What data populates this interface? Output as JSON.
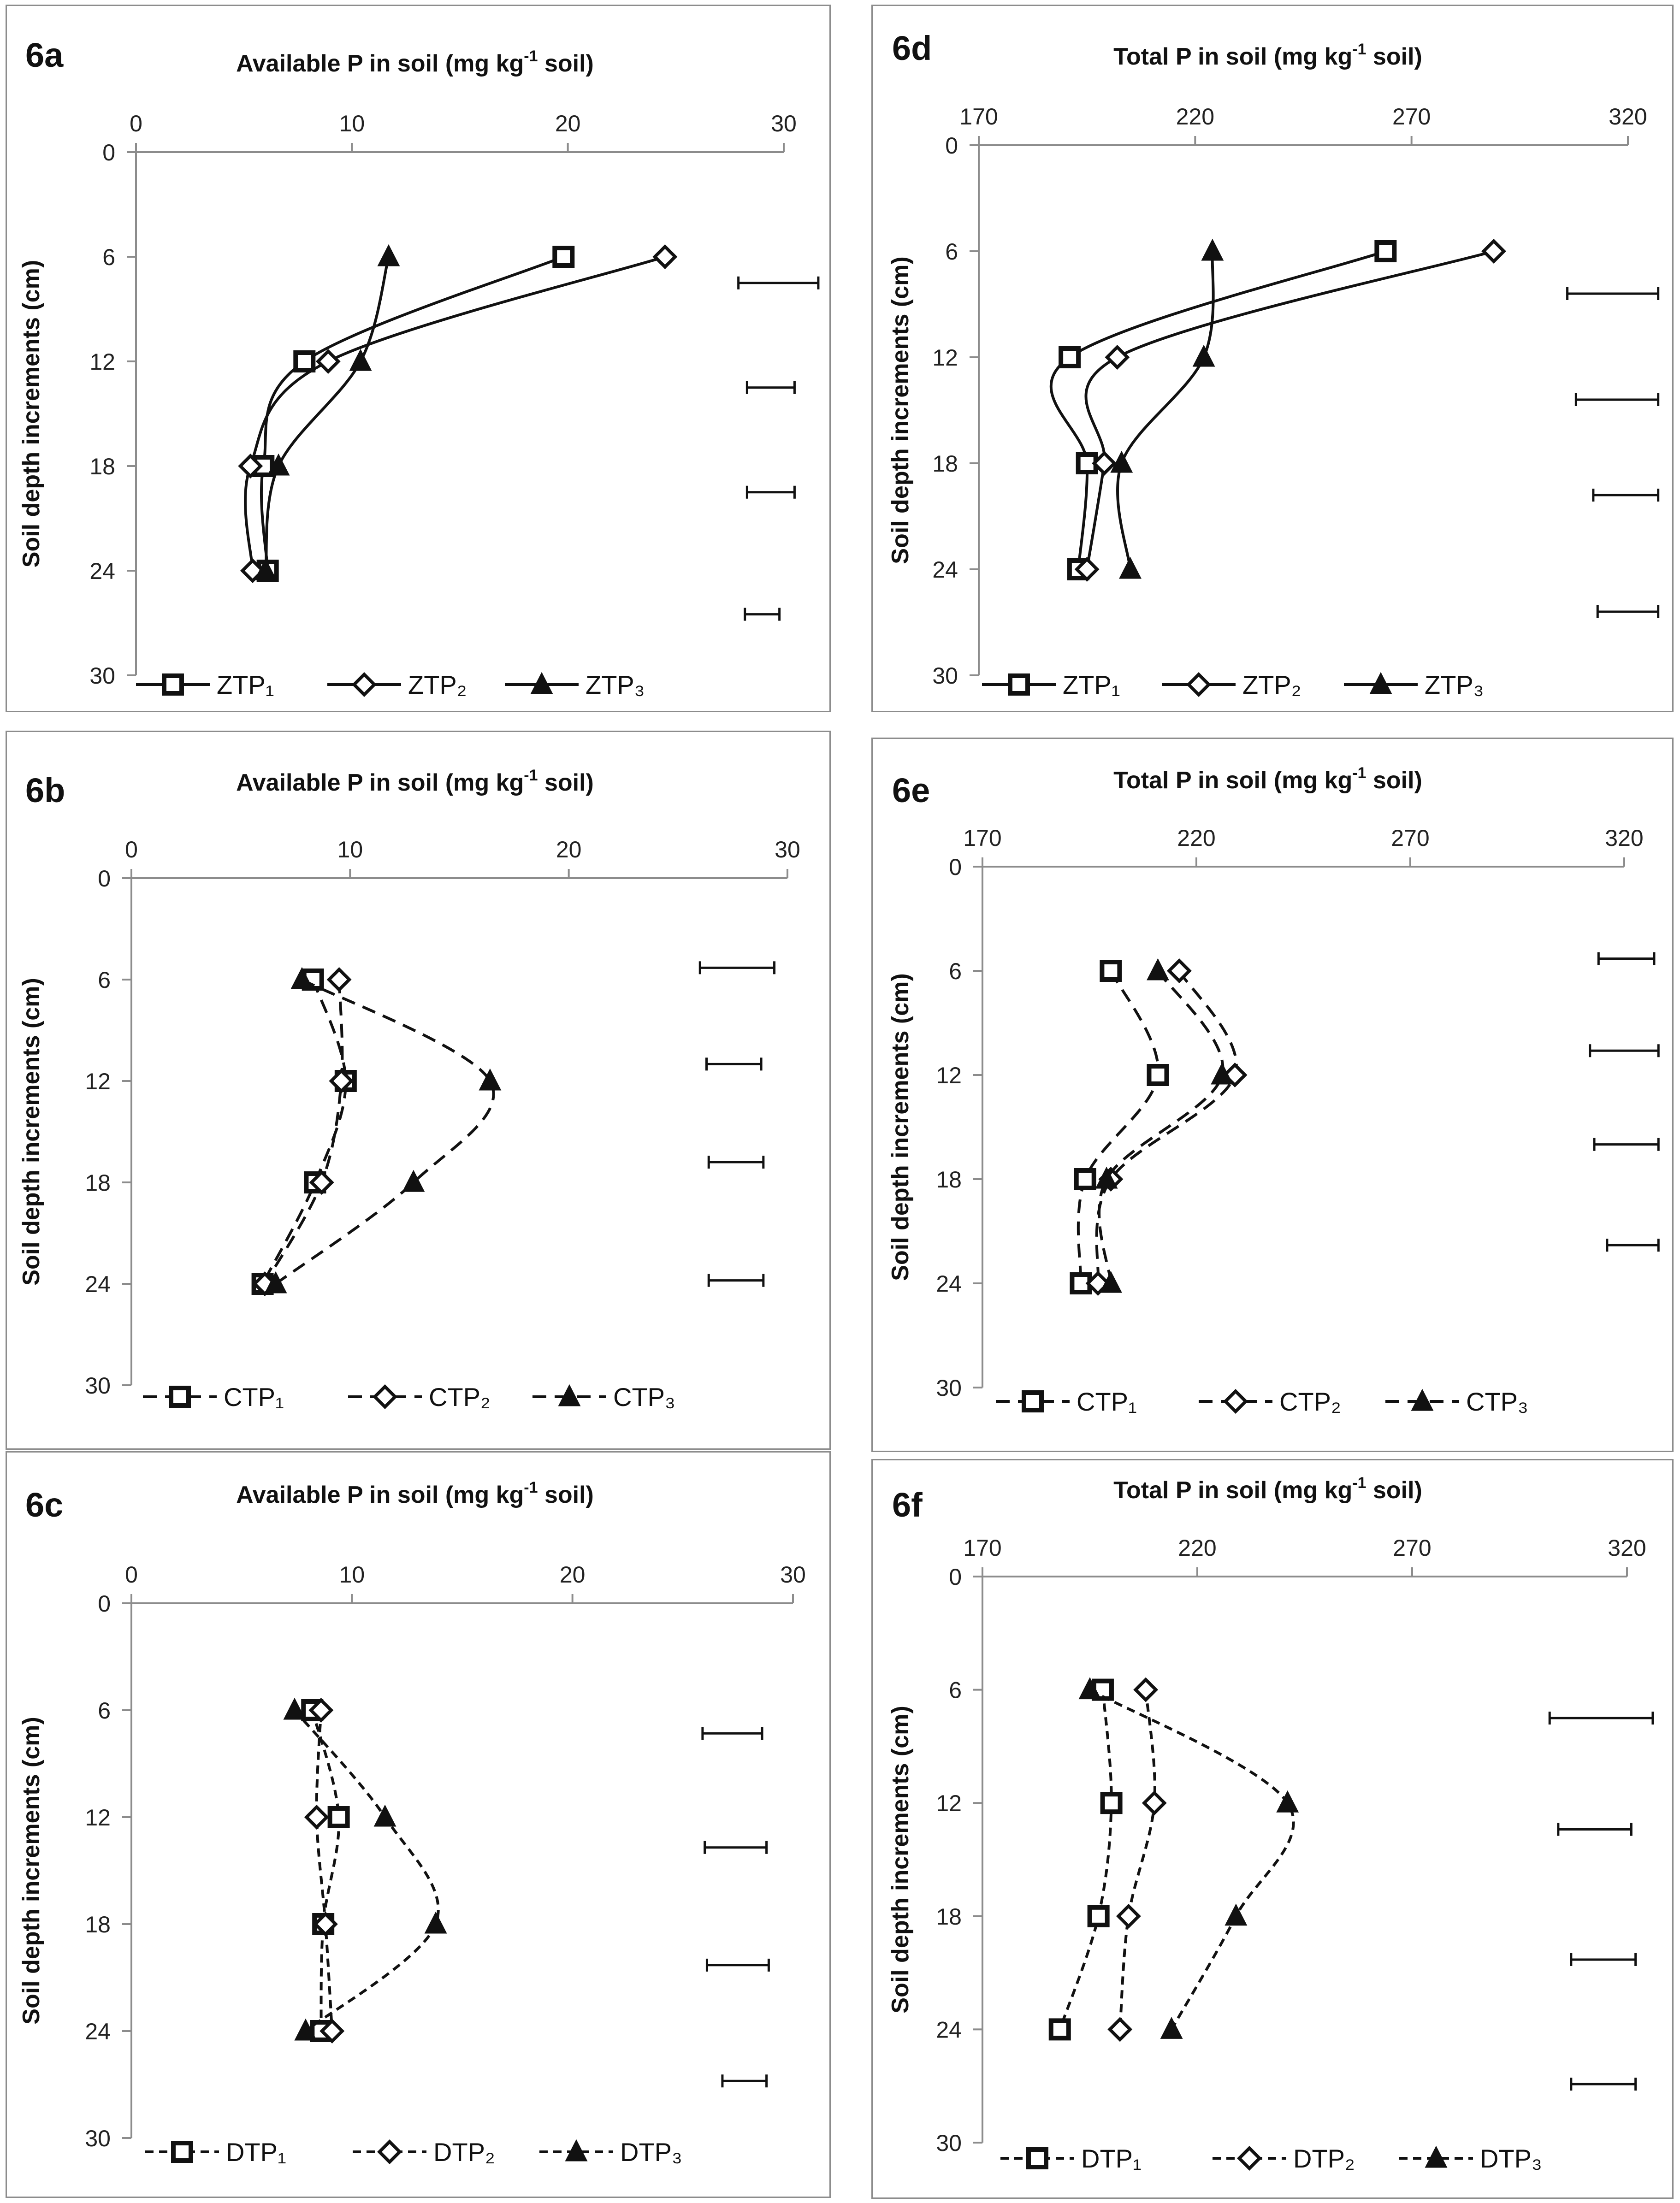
{
  "chart_data": [
    {
      "id": "6a",
      "panel_label": "6a",
      "type": "line",
      "title_main": "Available P in soil (mg kg",
      "title_sup": "-1",
      "title_end": " soil)",
      "ylabel": "Soil depth increments (cm)",
      "xlim": [
        0,
        30
      ],
      "x_ticks": [
        "0",
        "10",
        "20",
        "30"
      ],
      "ylim": [
        0,
        30
      ],
      "y_ticks": [
        "0",
        "6",
        "12",
        "18",
        "24",
        "30"
      ],
      "line_style": "solid",
      "series": [
        {
          "name": "ZTP₁",
          "marker": "square",
          "x": [
            19.8,
            7.8,
            5.9,
            6.1
          ],
          "depth": [
            6,
            12,
            18,
            24
          ]
        },
        {
          "name": "ZTP₂",
          "marker": "diamond",
          "x": [
            24.5,
            8.9,
            5.3,
            5.4
          ],
          "depth": [
            6,
            12,
            18,
            24
          ]
        },
        {
          "name": "ZTP₃",
          "marker": "triangle",
          "x": [
            11.7,
            10.4,
            6.6,
            6.0
          ],
          "depth": [
            6,
            12,
            18,
            24
          ]
        }
      ],
      "error_bars": [
        {
          "depth": 7.5,
          "low": 27.9,
          "high": 31.6
        },
        {
          "depth": 13.5,
          "low": 28.3,
          "high": 30.5
        },
        {
          "depth": 19.5,
          "low": 28.3,
          "high": 30.5
        },
        {
          "depth": 26.5,
          "low": 28.2,
          "high": 29.8
        }
      ]
    },
    {
      "id": "6b",
      "panel_label": "6b",
      "type": "line",
      "title_main": "Available P in soil (mg kg",
      "title_sup": "-1",
      "title_end": " soil)",
      "ylabel": "Soil depth increments (cm)",
      "xlim": [
        0,
        30
      ],
      "x_ticks": [
        "0",
        "10",
        "20",
        "30"
      ],
      "ylim": [
        0,
        30
      ],
      "y_ticks": [
        "0",
        "6",
        "12",
        "18",
        "24",
        "30"
      ],
      "line_style": "dashed",
      "series": [
        {
          "name": "CTP₁",
          "marker": "square",
          "x": [
            8.3,
            9.8,
            8.4,
            6.0
          ],
          "depth": [
            6,
            12,
            18,
            24
          ]
        },
        {
          "name": "CTP₂",
          "marker": "diamond",
          "x": [
            9.5,
            9.6,
            8.7,
            6.1
          ],
          "depth": [
            6,
            12,
            18,
            24
          ]
        },
        {
          "name": "CTP₃",
          "marker": "triangle",
          "x": [
            7.8,
            16.4,
            12.9,
            6.6
          ],
          "depth": [
            6,
            12,
            18,
            24
          ]
        }
      ],
      "error_bars": [
        {
          "depth": 5.3,
          "low": 26.0,
          "high": 29.4
        },
        {
          "depth": 11.0,
          "low": 26.3,
          "high": 28.8
        },
        {
          "depth": 16.8,
          "low": 26.4,
          "high": 28.9
        },
        {
          "depth": 23.8,
          "low": 26.4,
          "high": 28.9
        }
      ]
    },
    {
      "id": "6c",
      "panel_label": "6c",
      "type": "line",
      "title_main": "Available P in soil (mg kg",
      "title_sup": "-1",
      "title_end": " soil)",
      "ylabel": "Soil depth increments (cm)",
      "xlim": [
        0,
        30
      ],
      "x_ticks": [
        "0",
        "10",
        "20",
        "30"
      ],
      "ylim": [
        0,
        30
      ],
      "y_ticks": [
        "0",
        "6",
        "12",
        "18",
        "24",
        "30"
      ],
      "line_style": "dotted",
      "series": [
        {
          "name": "DTP₁",
          "marker": "square",
          "x": [
            8.2,
            9.4,
            8.7,
            8.6
          ],
          "depth": [
            6,
            12,
            18,
            24
          ]
        },
        {
          "name": "DTP₂",
          "marker": "diamond",
          "x": [
            8.6,
            8.4,
            8.8,
            9.1
          ],
          "depth": [
            6,
            12,
            18,
            24
          ]
        },
        {
          "name": "DTP₃",
          "marker": "triangle",
          "x": [
            7.4,
            11.5,
            13.8,
            7.9
          ],
          "depth": [
            6,
            12,
            18,
            24
          ]
        }
      ],
      "error_bars": [
        {
          "depth": 7.3,
          "low": 25.9,
          "high": 28.6
        },
        {
          "depth": 13.7,
          "low": 26.0,
          "high": 28.8
        },
        {
          "depth": 20.3,
          "low": 26.1,
          "high": 28.9
        },
        {
          "depth": 26.8,
          "low": 26.8,
          "high": 28.8
        }
      ]
    },
    {
      "id": "6d",
      "panel_label": "6d",
      "type": "line",
      "title_main": "Total P in soil (mg kg",
      "title_sup": "-1",
      "title_end": " soil)",
      "ylabel": "Soil depth increments (cm)",
      "xlim": [
        170,
        320
      ],
      "x_ticks": [
        "170",
        "220",
        "270",
        "320"
      ],
      "ylim": [
        0,
        30
      ],
      "y_ticks": [
        "0",
        "6",
        "12",
        "18",
        "24",
        "30"
      ],
      "line_style": "solid",
      "series": [
        {
          "name": "ZTP₁",
          "marker": "square",
          "x": [
            264,
            191,
            195,
            193
          ],
          "depth": [
            6,
            12,
            18,
            24
          ]
        },
        {
          "name": "ZTP₂",
          "marker": "diamond",
          "x": [
            289,
            202,
            199,
            195
          ],
          "depth": [
            6,
            12,
            18,
            24
          ]
        },
        {
          "name": "ZTP₃",
          "marker": "triangle",
          "x": [
            224,
            222,
            203,
            205
          ],
          "depth": [
            6,
            12,
            18,
            24
          ]
        }
      ],
      "error_bars": [
        {
          "depth": 8.4,
          "low": 306,
          "high": 327
        },
        {
          "depth": 14.4,
          "low": 308,
          "high": 327
        },
        {
          "depth": 19.8,
          "low": 312,
          "high": 327
        },
        {
          "depth": 26.4,
          "low": 313,
          "high": 327
        }
      ]
    },
    {
      "id": "6e",
      "panel_label": "6e",
      "type": "line",
      "title_main": "Total P in soil (mg kg",
      "title_sup": "-1",
      "title_end": " soil)",
      "ylabel": "Soil depth increments (cm)",
      "xlim": [
        170,
        320
      ],
      "x_ticks": [
        "170",
        "220",
        "270",
        "320"
      ],
      "ylim": [
        0,
        30
      ],
      "y_ticks": [
        "0",
        "6",
        "12",
        "18",
        "24",
        "30"
      ],
      "line_style": "dashed",
      "series": [
        {
          "name": "CTP₁",
          "marker": "square",
          "x": [
            200,
            211,
            194,
            193
          ],
          "depth": [
            6,
            12,
            18,
            24
          ]
        },
        {
          "name": "CTP₂",
          "marker": "diamond",
          "x": [
            216,
            229,
            200,
            197
          ],
          "depth": [
            6,
            12,
            18,
            24
          ]
        },
        {
          "name": "CTP₃",
          "marker": "triangle",
          "x": [
            211,
            226,
            199,
            200
          ],
          "depth": [
            6,
            12,
            18,
            24
          ]
        }
      ],
      "error_bars": [
        {
          "depth": 5.3,
          "low": 314,
          "high": 327
        },
        {
          "depth": 10.6,
          "low": 312,
          "high": 328
        },
        {
          "depth": 16.0,
          "low": 313,
          "high": 328
        },
        {
          "depth": 21.8,
          "low": 316,
          "high": 328
        }
      ]
    },
    {
      "id": "6f",
      "panel_label": "6f",
      "type": "line",
      "title_main": "Total P in soil (mg kg",
      "title_sup": "-1",
      "title_end": " soil)",
      "ylabel": "Soil depth increments (cm)",
      "xlim": [
        170,
        320
      ],
      "x_ticks": [
        "170",
        "220",
        "270",
        "320"
      ],
      "ylim": [
        0,
        30
      ],
      "y_ticks": [
        "0",
        "6",
        "12",
        "18",
        "24",
        "30"
      ],
      "line_style": "dotted",
      "series": [
        {
          "name": "DTP₁",
          "marker": "square",
          "x": [
            198,
            200,
            197,
            188
          ],
          "depth": [
            6,
            12,
            18,
            24
          ]
        },
        {
          "name": "DTP₂",
          "marker": "diamond",
          "x": [
            208,
            210,
            204,
            202
          ],
          "depth": [
            6,
            12,
            18,
            24
          ]
        },
        {
          "name": "DTP₃",
          "marker": "triangle",
          "x": [
            195,
            241,
            229,
            214
          ],
          "depth": [
            6,
            12,
            18,
            24
          ]
        }
      ],
      "error_bars": [
        {
          "depth": 7.5,
          "low": 302,
          "high": 326
        },
        {
          "depth": 13.4,
          "low": 304,
          "high": 321
        },
        {
          "depth": 20.3,
          "low": 307,
          "high": 322
        },
        {
          "depth": 26.9,
          "low": 307,
          "high": 322
        }
      ]
    }
  ]
}
